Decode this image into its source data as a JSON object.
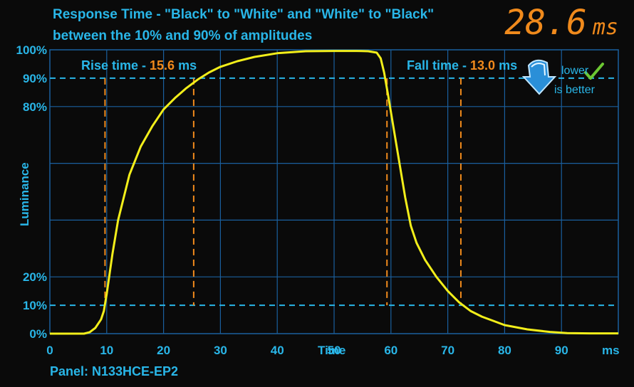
{
  "header": {
    "title_line1": "Response Time - \"Black\" to \"White\" and \"White\" to \"Black\"",
    "title_line2": "between the 10% and 90% of amplitudes",
    "total_value": "28.6",
    "total_unit": "ms"
  },
  "footer": {
    "panel": "Panel: N133HCE-EP2"
  },
  "badge": {
    "line1": "lower",
    "line2": "is better",
    "icon": "down-arrow-checkmark-icon"
  },
  "colors": {
    "background": "#0a0a0a",
    "grid": "#1a5f9e",
    "accent": "#29b6e8",
    "curve": "#f2ee1a",
    "marker": "#f08a1c"
  },
  "chart_data": {
    "type": "line",
    "title": "Response Time - \"Black\" to \"White\" and \"White\" to \"Black\"",
    "subtitle": "between the 10% and 90% of amplitudes",
    "xlabel": "Time",
    "x_unit": "ms",
    "ylabel": "Luminance",
    "xlim": [
      0,
      100
    ],
    "ylim": [
      0,
      100
    ],
    "x_ticks": [
      0,
      10,
      20,
      30,
      40,
      50,
      60,
      70,
      80,
      90
    ],
    "y_ticks": [
      {
        "value": 0,
        "label": "0%"
      },
      {
        "value": 10,
        "label": "10%"
      },
      {
        "value": 20,
        "label": "20%"
      },
      {
        "value": 80,
        "label": "80%"
      },
      {
        "value": 90,
        "label": "90%"
      },
      {
        "value": 100,
        "label": "100%"
      }
    ],
    "grid": true,
    "series": [
      {
        "x": [
          0,
          6,
          7,
          8,
          9,
          9.5,
          10,
          11,
          12,
          14,
          16,
          18,
          20,
          22,
          24,
          26,
          28,
          30,
          33,
          36,
          40,
          45,
          50,
          54,
          56,
          57.5,
          58.2,
          58.8,
          59.5,
          60.5,
          61.5,
          62.5,
          63.5,
          64.5,
          66,
          68,
          70,
          72,
          74,
          76,
          78,
          80,
          84,
          88,
          91,
          95,
          100
        ],
        "y": [
          0,
          0,
          0.5,
          2,
          5,
          8,
          14,
          28,
          40,
          56,
          66,
          73,
          79,
          83,
          86.5,
          89.5,
          92,
          94,
          96,
          97.5,
          98.8,
          99.5,
          99.6,
          99.6,
          99.5,
          99,
          97,
          92,
          84,
          72,
          60,
          48,
          38,
          32,
          26,
          20,
          15,
          11,
          8,
          6,
          4.5,
          3,
          1.5,
          0.6,
          0.2,
          0.1,
          0.1
        ]
      }
    ],
    "threshold_lines": [
      10,
      90
    ],
    "markers": [
      {
        "x": 9.7,
        "label": "rise-start"
      },
      {
        "x": 25.3,
        "label": "rise-end"
      },
      {
        "x": 59.3,
        "label": "fall-start"
      },
      {
        "x": 72.3,
        "label": "fall-end"
      }
    ],
    "annotations": [
      {
        "text": "Rise time - ",
        "value": "15.6",
        "unit": "ms"
      },
      {
        "text": "Fall time - ",
        "value": "13.0",
        "unit": "ms"
      }
    ]
  }
}
